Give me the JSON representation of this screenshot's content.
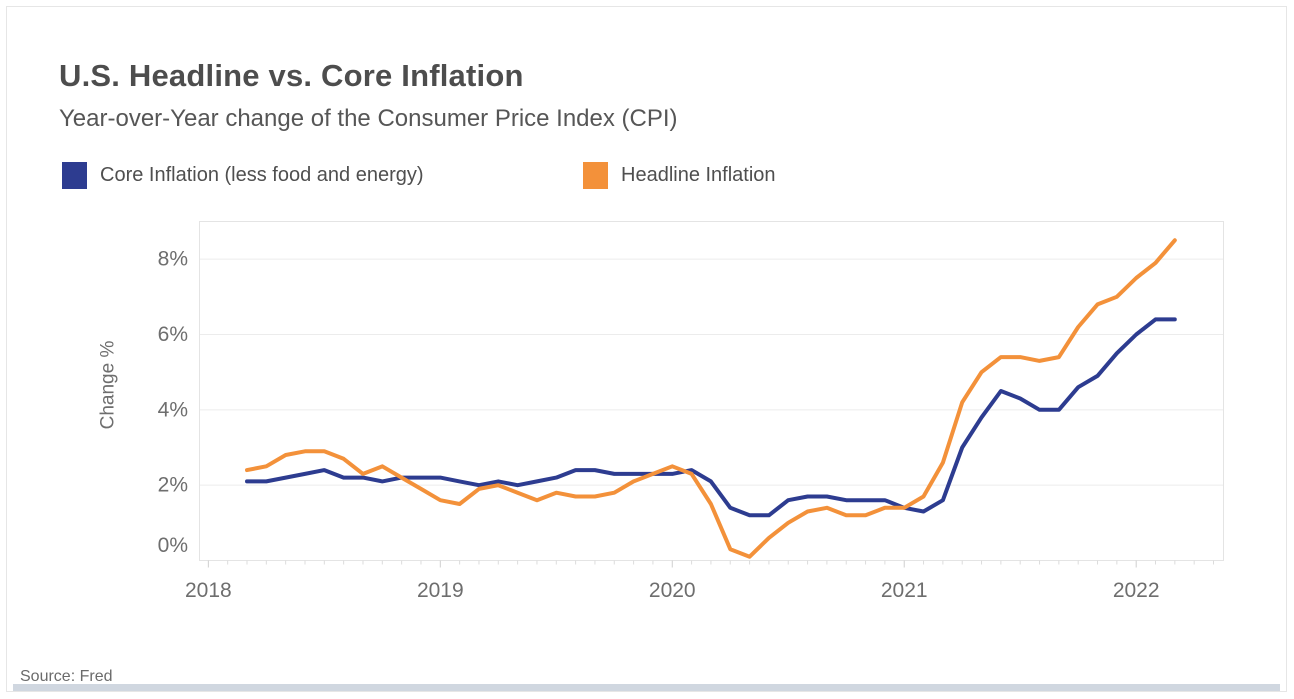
{
  "header": {
    "title": "U.S. Headline vs. Core Inflation",
    "subtitle": "Year-over-Year change of the Consumer Price Index (CPI)"
  },
  "legend": [
    {
      "id": "core-inflation",
      "label": "Core Inflation (less food and energy)",
      "color": "#2d3c90"
    },
    {
      "id": "headline-inflation",
      "label": "Headline Inflation",
      "color": "#f3913a"
    }
  ],
  "source": {
    "label": "Source: Fred"
  },
  "chart_data": {
    "type": "line",
    "title": "U.S. Headline vs. Core Inflation",
    "subtitle": "Year-over-Year change of the Consumer Price Index (CPI)",
    "xlabel": "",
    "ylabel": "Change %",
    "ylim": [
      0,
      9
    ],
    "grid": "horizontal",
    "legend_position": "top",
    "y_ticks": [
      {
        "label": "0%",
        "value": 0
      },
      {
        "label": "2%",
        "value": 2
      },
      {
        "label": "4%",
        "value": 4
      },
      {
        "label": "6%",
        "value": 6
      },
      {
        "label": "8%",
        "value": 8
      }
    ],
    "x_label_ticks": [
      "2018",
      "2019",
      "2020",
      "2021",
      "2022"
    ],
    "x": [
      "2018-03",
      "2018-04",
      "2018-05",
      "2018-06",
      "2018-07",
      "2018-08",
      "2018-09",
      "2018-10",
      "2018-11",
      "2018-12",
      "2019-01",
      "2019-02",
      "2019-03",
      "2019-04",
      "2019-05",
      "2019-06",
      "2019-07",
      "2019-08",
      "2019-09",
      "2019-10",
      "2019-11",
      "2019-12",
      "2020-01",
      "2020-02",
      "2020-03",
      "2020-04",
      "2020-05",
      "2020-06",
      "2020-07",
      "2020-08",
      "2020-09",
      "2020-10",
      "2020-11",
      "2020-12",
      "2021-01",
      "2021-02",
      "2021-03",
      "2021-04",
      "2021-05",
      "2021-06",
      "2021-07",
      "2021-08",
      "2021-09",
      "2021-10",
      "2021-11",
      "2021-12",
      "2022-01",
      "2022-02",
      "2022-03"
    ],
    "series": [
      {
        "id": "core-inflation",
        "name": "Core Inflation (less food and energy)",
        "color": "#2d3c90",
        "values": [
          2.1,
          2.1,
          2.2,
          2.3,
          2.4,
          2.2,
          2.2,
          2.1,
          2.2,
          2.2,
          2.2,
          2.1,
          2.0,
          2.1,
          2.0,
          2.1,
          2.2,
          2.4,
          2.4,
          2.3,
          2.3,
          2.3,
          2.3,
          2.4,
          2.1,
          1.4,
          1.2,
          1.2,
          1.6,
          1.7,
          1.7,
          1.6,
          1.6,
          1.6,
          1.4,
          1.3,
          1.6,
          3.0,
          3.8,
          4.5,
          4.3,
          4.0,
          4.0,
          4.6,
          4.9,
          5.5,
          6.0,
          6.4,
          6.4
        ]
      },
      {
        "id": "headline-inflation",
        "name": "Headline Inflation",
        "color": "#f3913a",
        "values": [
          2.4,
          2.5,
          2.8,
          2.9,
          2.9,
          2.7,
          2.3,
          2.5,
          2.2,
          1.9,
          1.6,
          1.5,
          1.9,
          2.0,
          1.8,
          1.6,
          1.8,
          1.7,
          1.7,
          1.8,
          2.1,
          2.3,
          2.5,
          2.3,
          1.5,
          0.3,
          0.1,
          0.6,
          1.0,
          1.3,
          1.4,
          1.2,
          1.2,
          1.4,
          1.4,
          1.7,
          2.6,
          4.2,
          5.0,
          5.4,
          5.4,
          5.3,
          5.4,
          6.2,
          6.8,
          7.0,
          7.5,
          7.9,
          8.5
        ]
      }
    ]
  }
}
